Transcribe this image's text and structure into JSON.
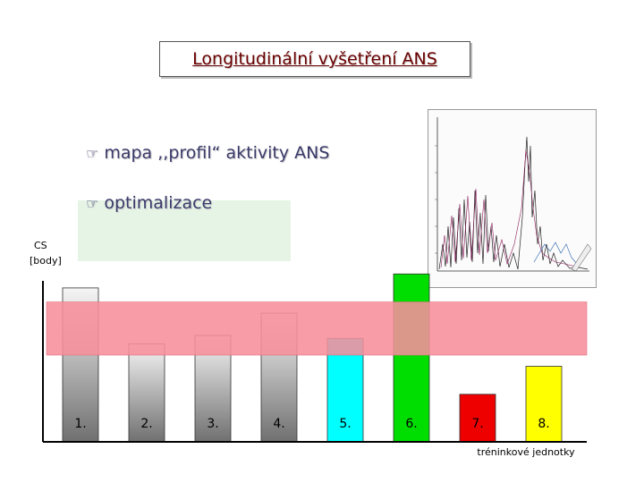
{
  "title": "Longitudinální vyšetření ANS",
  "bullets": [
    {
      "icon": "pointing-hand-icon",
      "text": "mapa ,,profil“ aktivity ANS"
    },
    {
      "icon": "pointing-hand-icon",
      "text": "optimalizace"
    }
  ],
  "chart_data": {
    "type": "bar",
    "ylabel": [
      "CS",
      "[body]"
    ],
    "xlabel": "tréninkové jednotky",
    "categories": [
      "1.",
      "2.",
      "3.",
      "4.",
      "5.",
      "6.",
      "7.",
      "8."
    ],
    "values": [
      0.55,
      0.35,
      0.38,
      0.46,
      0.37,
      0.6,
      0.17,
      0.27
    ],
    "ylim": [
      0,
      0.62
    ],
    "band": [
      0.31,
      0.5
    ],
    "colors": {
      "band": "#f78e9c",
      "gray_bar_top": "#f5f5f5",
      "gray_bar_bottom": "#707070",
      "bar5": "#00ffff",
      "bar6": "#00dd00",
      "bar7": "#ee0000",
      "bar8": "#ffff00",
      "axis": "#000000"
    }
  },
  "inset_graph": {
    "icon": "spectral-graph-thumbnail"
  }
}
